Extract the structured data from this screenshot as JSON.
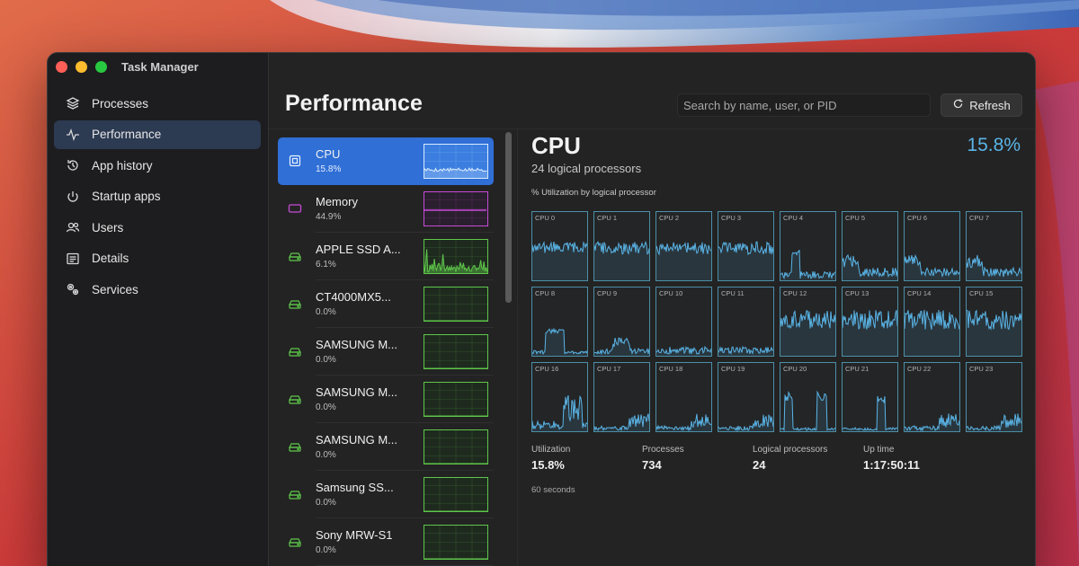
{
  "colors": {
    "accent": "#2f6fd6",
    "cpu_line": "#5ab4e6",
    "memory_line": "#c64bd6",
    "disk_line": "#5ec74a",
    "traffic_red": "#ff5f57",
    "traffic_yellow": "#febc2e",
    "traffic_green": "#28c840"
  },
  "window": {
    "title": "Task Manager"
  },
  "sidebar": {
    "items": [
      {
        "label": "Processes",
        "icon": "layers-icon"
      },
      {
        "label": "Performance",
        "icon": "pulse-icon",
        "active": true
      },
      {
        "label": "App history",
        "icon": "history-icon"
      },
      {
        "label": "Startup apps",
        "icon": "power-icon"
      },
      {
        "label": "Users",
        "icon": "users-icon"
      },
      {
        "label": "Details",
        "icon": "list-icon"
      },
      {
        "label": "Services",
        "icon": "gears-icon"
      }
    ]
  },
  "header": {
    "title": "Performance",
    "search_placeholder": "Search by name, user, or PID",
    "refresh_label": "Refresh"
  },
  "devices": [
    {
      "name": "CPU",
      "value": "15.8%",
      "icon": "cpu-icon",
      "kind": "cpu",
      "active": true
    },
    {
      "name": "Memory",
      "value": "44.9%",
      "icon": "memory-icon",
      "kind": "memory"
    },
    {
      "name": "APPLE SSD A...",
      "value": "6.1%",
      "icon": "disk-icon",
      "kind": "disk-active"
    },
    {
      "name": "CT4000MX5...",
      "value": "0.0%",
      "icon": "disk-icon",
      "kind": "disk"
    },
    {
      "name": "SAMSUNG M...",
      "value": "0.0%",
      "icon": "disk-icon",
      "kind": "disk"
    },
    {
      "name": "SAMSUNG M...",
      "value": "0.0%",
      "icon": "disk-icon",
      "kind": "disk"
    },
    {
      "name": "SAMSUNG M...",
      "value": "0.0%",
      "icon": "disk-icon",
      "kind": "disk"
    },
    {
      "name": "Samsung SS...",
      "value": "0.0%",
      "icon": "disk-icon",
      "kind": "disk"
    },
    {
      "name": "Sony MRW-S1",
      "value": "0.0%",
      "icon": "disk-icon",
      "kind": "disk"
    }
  ],
  "cpu": {
    "title": "CPU",
    "subtitle": "24 logical processors",
    "utilization": "15.8%",
    "grid_label": "% Utilization by logical processor",
    "cores": [
      "CPU 0",
      "CPU 1",
      "CPU 2",
      "CPU 3",
      "CPU 4",
      "CPU 5",
      "CPU 6",
      "CPU 7",
      "CPU 8",
      "CPU 9",
      "CPU 10",
      "CPU 11",
      "CPU 12",
      "CPU 13",
      "CPU 14",
      "CPU 15",
      "CPU 16",
      "CPU 17",
      "CPU 18",
      "CPU 19",
      "CPU 20",
      "CPU 21",
      "CPU 22",
      "CPU 23"
    ],
    "stats": [
      {
        "label": "Utilization",
        "value": "15.8%"
      },
      {
        "label": "Processes",
        "value": "734"
      },
      {
        "label": "Logical processors",
        "value": "24"
      },
      {
        "label": "Up time",
        "value": "1:17:50:11"
      }
    ],
    "footer": "60 seconds"
  }
}
